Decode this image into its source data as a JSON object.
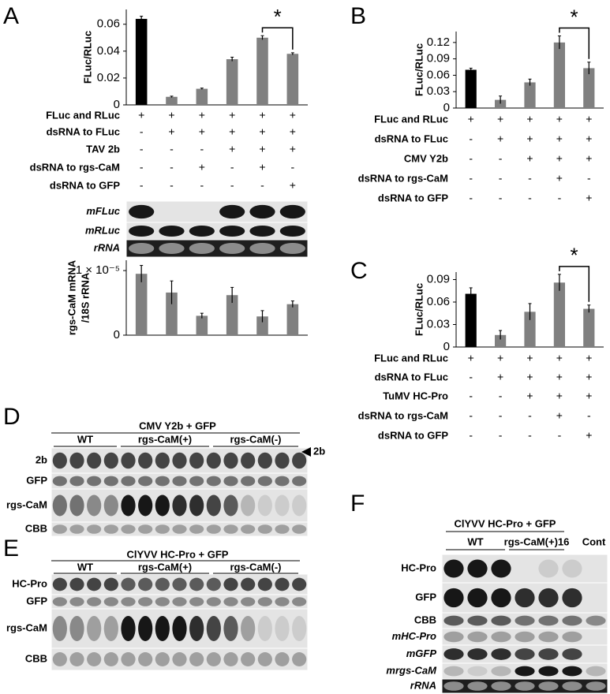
{
  "chart_data": [
    {
      "type": "bar",
      "panel": "A",
      "ylabel": "FLuc/RLuc",
      "values": [
        0.064,
        0.006,
        0.012,
        0.034,
        0.05,
        0.038
      ],
      "errors": [
        0.002,
        0.0005,
        0.0005,
        0.0015,
        0.0015,
        0.0008
      ],
      "colors": [
        "#000000",
        "#808080",
        "#808080",
        "#808080",
        "#808080",
        "#808080"
      ],
      "ylim": [
        0,
        0.071
      ],
      "yticks": [
        0,
        0.02,
        0.04,
        0.06
      ],
      "annotation": {
        "text": "*",
        "between": [
          4,
          5
        ]
      },
      "treatments": [
        {
          "label": "FLuc and RLuc",
          "signs": [
            "+",
            "+",
            "+",
            "+",
            "+",
            "+"
          ]
        },
        {
          "label": "dsRNA to FLuc",
          "signs": [
            "-",
            "+",
            "+",
            "+",
            "+",
            "+"
          ]
        },
        {
          "label": "TAV 2b",
          "signs": [
            "-",
            "-",
            "-",
            "+",
            "+",
            "+"
          ]
        },
        {
          "label": "dsRNA to rgs-CaM",
          "signs": [
            "-",
            "-",
            "+",
            "-",
            "+",
            "-"
          ]
        },
        {
          "label": "dsRNA to GFP",
          "signs": [
            "-",
            "-",
            "-",
            "-",
            "-",
            "+"
          ]
        }
      ]
    },
    {
      "type": "bar",
      "ylabel": [
        "rgs-CaM mRNA",
        "/18S rRNA"
      ],
      "values": [
        9.5e-06,
        6.6e-06,
        3e-06,
        6.2e-06,
        2.9e-06,
        4.8e-06
      ],
      "errors": [
        1.3e-06,
        1.8e-06,
        4e-07,
        1.2e-06,
        9e-07,
        5e-07
      ],
      "colors": [
        "#808080",
        "#808080",
        "#808080",
        "#808080",
        "#808080",
        "#808080"
      ],
      "ylim": [
        0,
        1.16e-05
      ],
      "yticks": [
        0,
        {
          "value": 1e-05,
          "label": "1 × 10⁻⁵"
        }
      ]
    },
    {
      "type": "bar",
      "panel": "B",
      "ylabel": "FLuc/RLuc",
      "values": [
        0.07,
        0.015,
        0.047,
        0.12,
        0.073
      ],
      "errors": [
        0.003,
        0.007,
        0.006,
        0.012,
        0.011
      ],
      "colors": [
        "#000000",
        "#808080",
        "#808080",
        "#808080",
        "#808080"
      ],
      "ylim": [
        0,
        0.14
      ],
      "yticks": [
        0,
        0.03,
        0.06,
        0.09,
        0.12
      ],
      "annotation": {
        "text": "*",
        "between": [
          3,
          4
        ]
      },
      "treatments": [
        {
          "label": "FLuc and RLuc",
          "signs": [
            "+",
            "+",
            "+",
            "+",
            "+"
          ]
        },
        {
          "label": "dsRNA to FLuc",
          "signs": [
            "-",
            "+",
            "+",
            "+",
            "+"
          ]
        },
        {
          "label": "CMV Y2b",
          "signs": [
            "-",
            "-",
            "+",
            "+",
            "+"
          ]
        },
        {
          "label": "dsRNA to rgs-CaM",
          "signs": [
            "-",
            "-",
            "-",
            "+",
            "-"
          ]
        },
        {
          "label": "dsRNA to GFP",
          "signs": [
            "-",
            "-",
            "-",
            "-",
            "+"
          ]
        }
      ]
    },
    {
      "type": "bar",
      "panel": "C",
      "ylabel": "FLuc/RLuc",
      "values": [
        0.071,
        0.016,
        0.047,
        0.086,
        0.051
      ],
      "errors": [
        0.008,
        0.006,
        0.011,
        0.011,
        0.005
      ],
      "colors": [
        "#000000",
        "#808080",
        "#808080",
        "#808080",
        "#808080"
      ],
      "ylim": [
        0,
        0.1
      ],
      "yticks": [
        0,
        0.03,
        0.06,
        0.09
      ],
      "annotation": {
        "text": "*",
        "between": [
          3,
          4
        ]
      },
      "treatments": [
        {
          "label": "FLuc and RLuc",
          "signs": [
            "+",
            "+",
            "+",
            "+",
            "+"
          ]
        },
        {
          "label": "dsRNA to FLuc",
          "signs": [
            "-",
            "+",
            "+",
            "+",
            "+"
          ]
        },
        {
          "label": "TuMV HC-Pro",
          "signs": [
            "-",
            "-",
            "+",
            "+",
            "+"
          ]
        },
        {
          "label": "dsRNA to rgs-CaM",
          "signs": [
            "-",
            "-",
            "-",
            "+",
            "-"
          ]
        },
        {
          "label": "dsRNA to GFP",
          "signs": [
            "-",
            "-",
            "-",
            "-",
            "+"
          ]
        }
      ]
    }
  ],
  "blots": [
    {
      "rows": [
        {
          "label": "mFLuc",
          "italic": true
        },
        {
          "label": "mRLuc",
          "italic": true
        },
        {
          "label": "rRNA",
          "italic": true
        }
      ]
    },
    {
      "panel": "D",
      "title": "CMV Y2b + GFP",
      "groups": [
        "WT",
        "rgs-CaM(+)",
        "rgs-CaM(-)"
      ],
      "marker": "2b",
      "rows": [
        {
          "label": "2b",
          "italic": false
        },
        {
          "label": "GFP",
          "italic": false
        },
        {
          "label": "rgs-CaM",
          "italic": false
        },
        {
          "label": "CBB",
          "italic": false
        }
      ]
    },
    {
      "panel": "E",
      "title": "ClYVV HC-Pro + GFP",
      "groups": [
        "WT",
        "rgs-CaM(+)",
        "rgs-CaM(-)"
      ],
      "rows": [
        {
          "label": "HC-Pro",
          "italic": false
        },
        {
          "label": "GFP",
          "italic": false
        },
        {
          "label": "rgs-CaM",
          "italic": false
        },
        {
          "label": "CBB",
          "italic": false
        }
      ]
    },
    {
      "panel": "F",
      "title": "ClYVV HC-Pro + GFP",
      "groups": [
        "WT",
        "rgs-CaM(+)16",
        "Cont"
      ],
      "rows": [
        {
          "label": "HC-Pro",
          "italic": false
        },
        {
          "label": "GFP",
          "italic": false
        },
        {
          "label": "CBB",
          "italic": false
        },
        {
          "label": "mHC-Pro",
          "italic": true
        },
        {
          "label": "mGFP",
          "italic": true
        },
        {
          "label": "mrgs-CaM",
          "italic": true
        },
        {
          "label": "rRNA",
          "italic": true
        }
      ]
    }
  ]
}
